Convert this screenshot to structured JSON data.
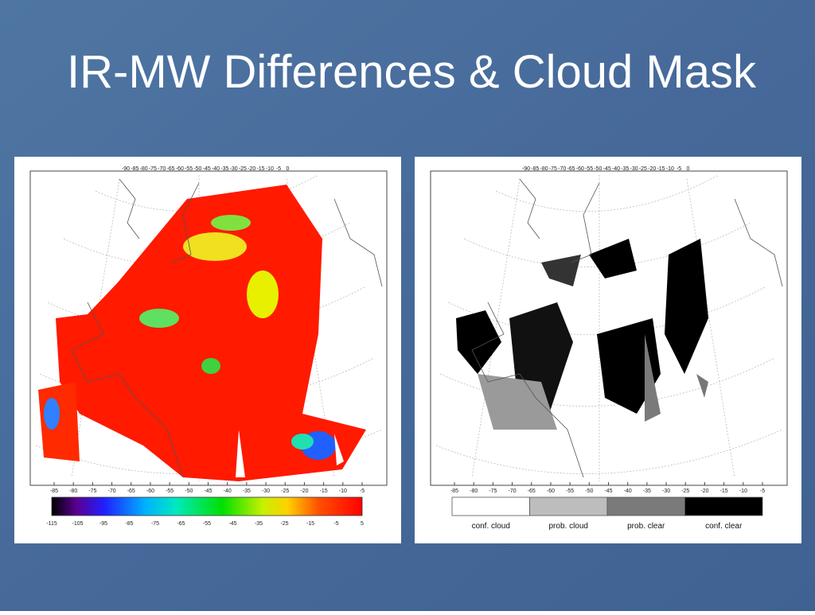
{
  "title": "IR-MW Differences & Cloud Mask",
  "panels": [
    {
      "top_axis_labels": [
        "-90",
        "-85",
        "-80",
        "-75",
        "-70",
        "-65",
        "-60",
        "-55",
        "-50",
        "-45",
        "-40",
        "-35",
        "-30",
        "-25",
        "-20",
        "-15",
        "-10",
        "-5",
        "0"
      ],
      "x_axis_labels": [
        "-85",
        "-80",
        "-75",
        "-70",
        "-65",
        "-60",
        "-55",
        "-50",
        "-45",
        "-40",
        "-35",
        "-30",
        "-25",
        "-20",
        "-15",
        "-10",
        "-5"
      ],
      "colorbar_labels": [
        "-115",
        "-105",
        "-95",
        "-85",
        "-75",
        "-65",
        "-55",
        "-45",
        "-35",
        "-25",
        "-15",
        "-5",
        "5"
      ]
    },
    {
      "top_axis_labels": [
        "-90",
        "-85",
        "-80",
        "-75",
        "-70",
        "-65",
        "-60",
        "-55",
        "-50",
        "-45",
        "-40",
        "-35",
        "-30",
        "-25",
        "-20",
        "-15",
        "-10",
        "-5",
        "0"
      ],
      "x_axis_labels": [
        "-85",
        "-80",
        "-75",
        "-70",
        "-65",
        "-60",
        "-55",
        "-50",
        "-45",
        "-40",
        "-35",
        "-30",
        "-25",
        "-20",
        "-15",
        "-10",
        "-5"
      ],
      "legend": [
        {
          "label": "conf. cloud",
          "color": "#ffffff"
        },
        {
          "label": "prob. cloud",
          "color": "#bdbdbd"
        },
        {
          "label": "prob. clear",
          "color": "#7a7a7a"
        },
        {
          "label": "conf. clear",
          "color": "#000000"
        }
      ]
    }
  ]
}
